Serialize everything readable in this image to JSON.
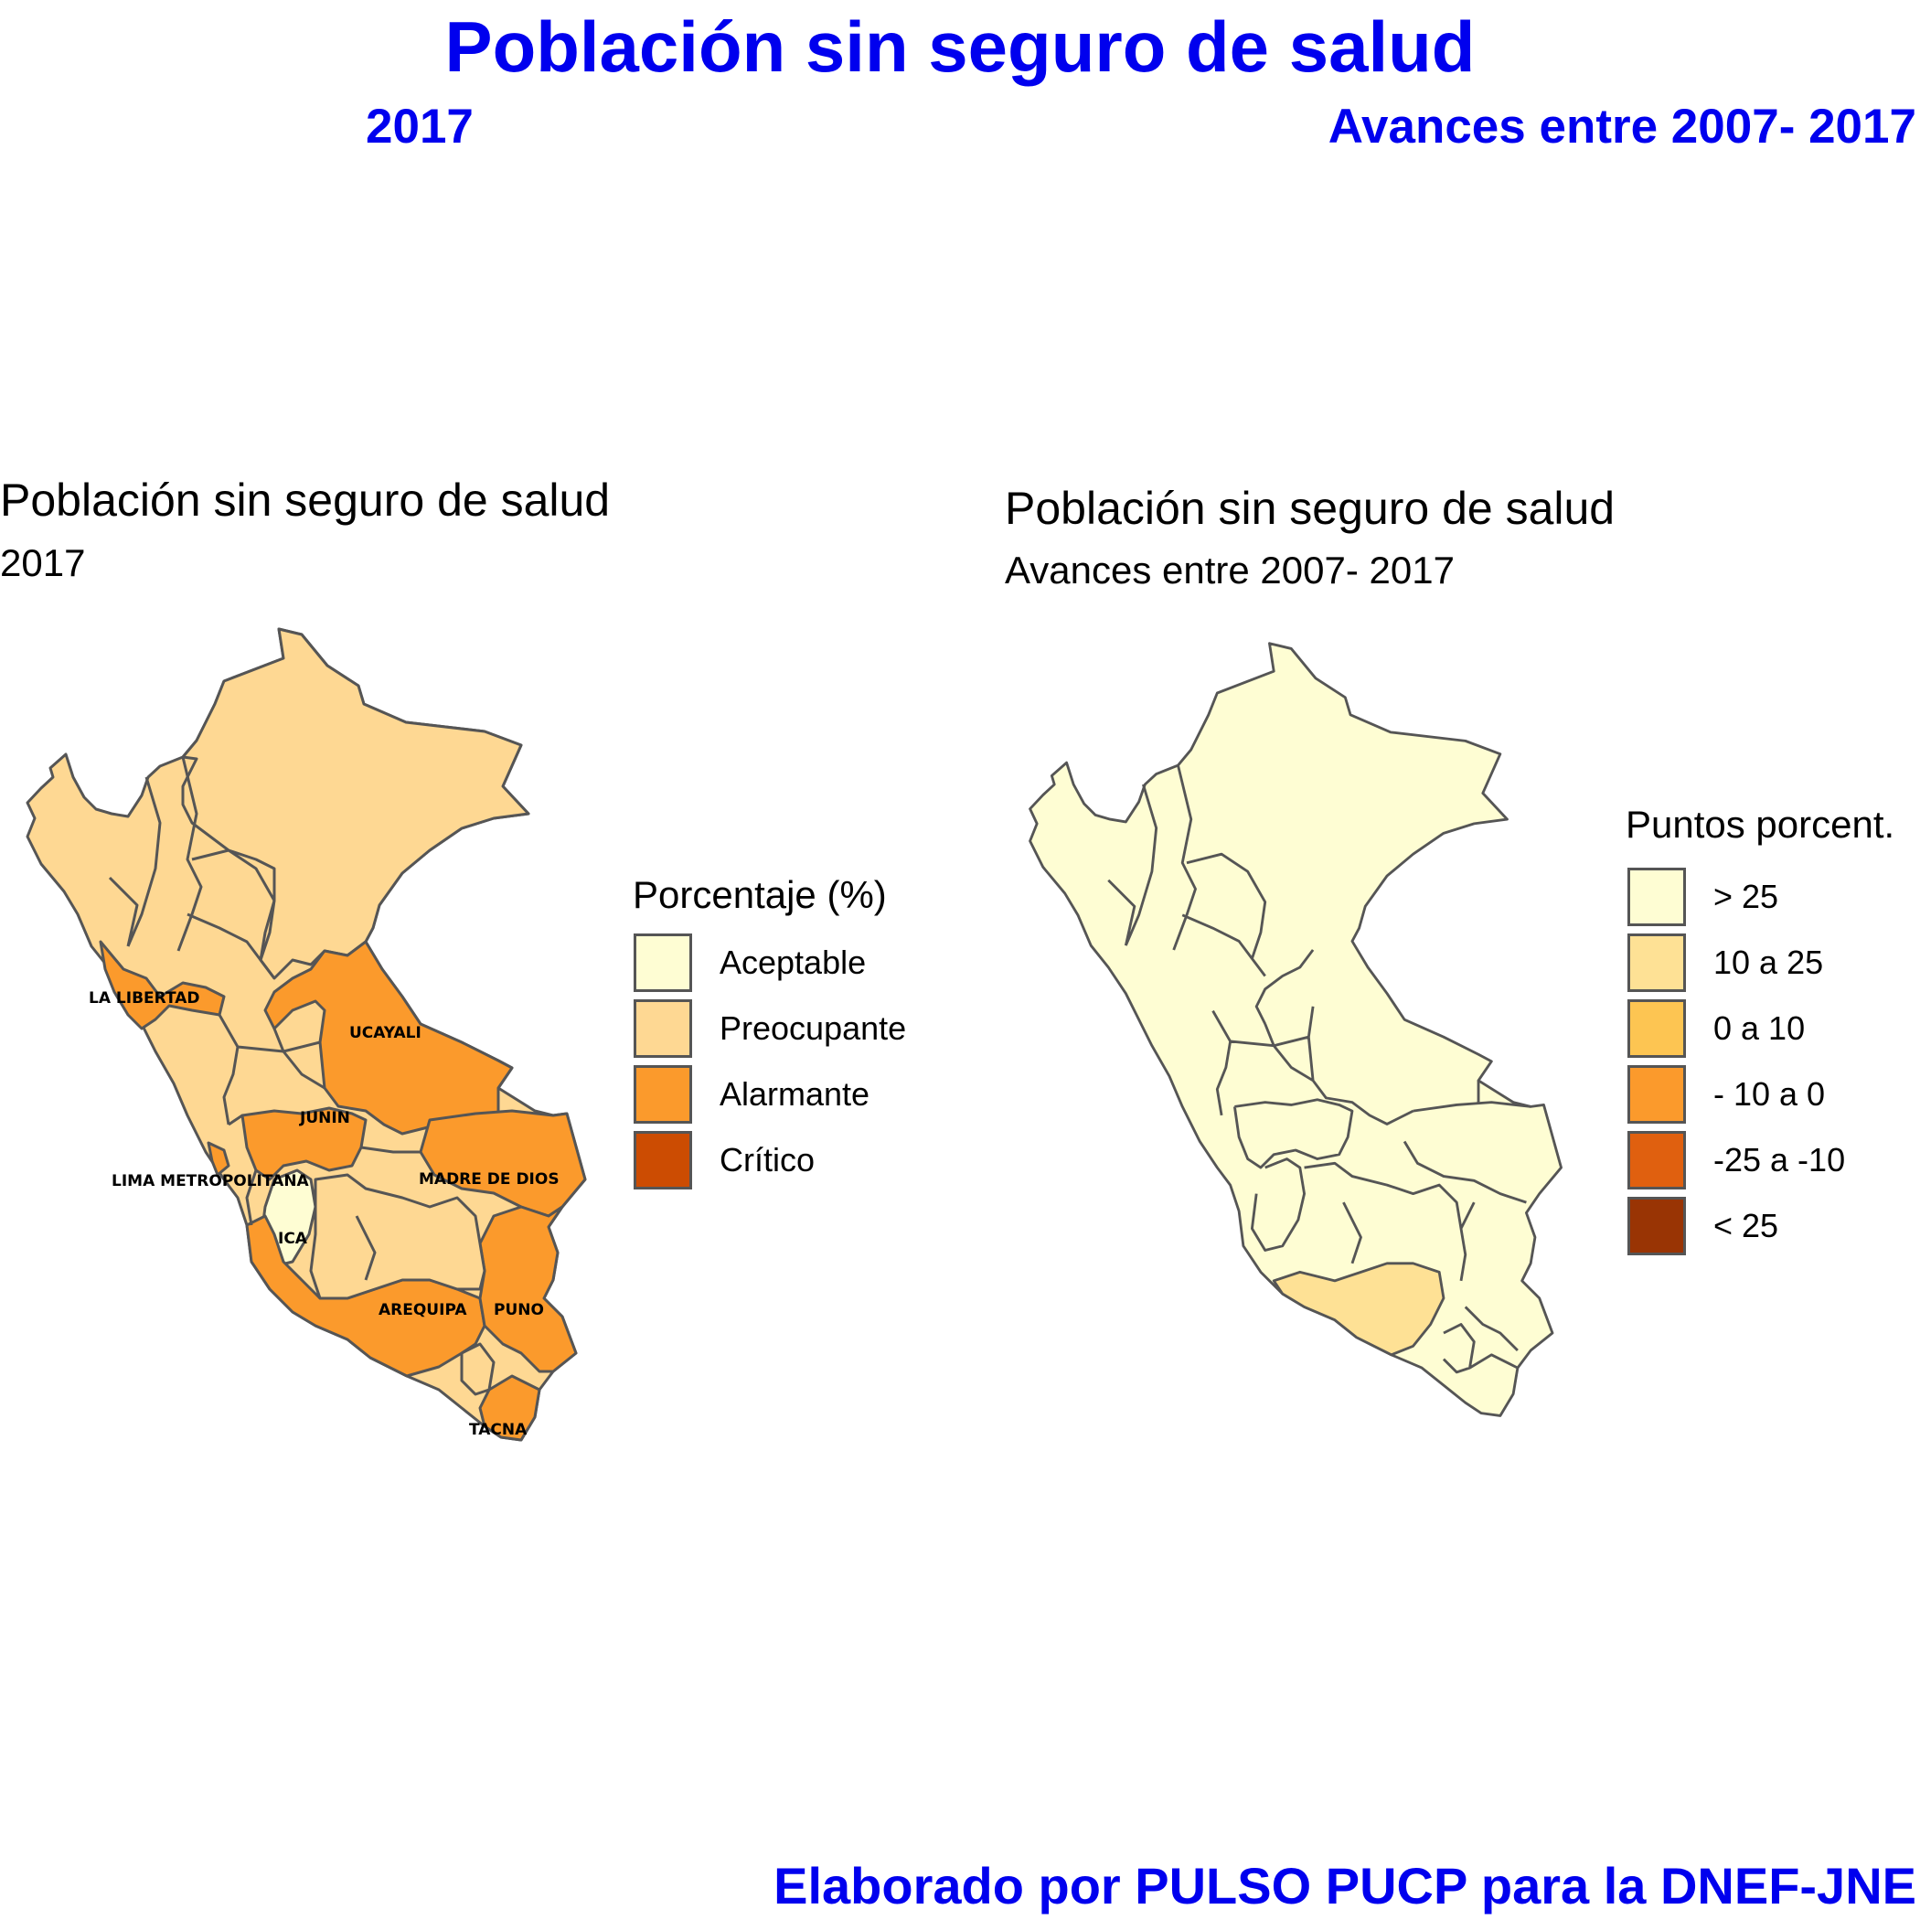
{
  "header": {
    "title": "Población sin seguro de salud",
    "subtitle_left": "2017",
    "subtitle_right": "Avances entre 2007- 2017"
  },
  "footer": {
    "credit": "Elaborado por PULSO PUCP para la DNEF-JNE"
  },
  "map_left": {
    "title": "Población sin seguro de salud",
    "subtitle": "2017",
    "legend_title": "Porcentaje (%)",
    "legend": [
      {
        "label": "Aceptable",
        "color": "#fefdd3"
      },
      {
        "label": "Preocupante",
        "color": "#fed893"
      },
      {
        "label": "Alarmante",
        "color": "#fb9a2c"
      },
      {
        "label": "Crítico",
        "color": "#cc4c02"
      }
    ],
    "region_labels": [
      "LA LIBERTAD",
      "UCAYALI",
      "JUNIN",
      "LIMA METROPOLITANA",
      "MADRE DE DIOS",
      "ICA",
      "AREQUIPA",
      "PUNO",
      "TACNA"
    ]
  },
  "map_right": {
    "title": "Población sin seguro de salud",
    "subtitle": "Avances entre 2007- 2017",
    "legend_title": "Puntos porcent.",
    "legend": [
      {
        "label": "> 25",
        "color": "#fefdd3"
      },
      {
        "label": "10 a 25",
        "color": "#fee195"
      },
      {
        "label": "0 a 10",
        "color": "#fdc552"
      },
      {
        "label": "- 10 a 0",
        "color": "#fb9a2c"
      },
      {
        "label": "-25 a -10",
        "color": "#e0600f"
      },
      {
        "label": "< 25",
        "color": "#993404"
      }
    ]
  },
  "colors": {
    "outline": "#555555",
    "title_blue": "#0000ee"
  }
}
